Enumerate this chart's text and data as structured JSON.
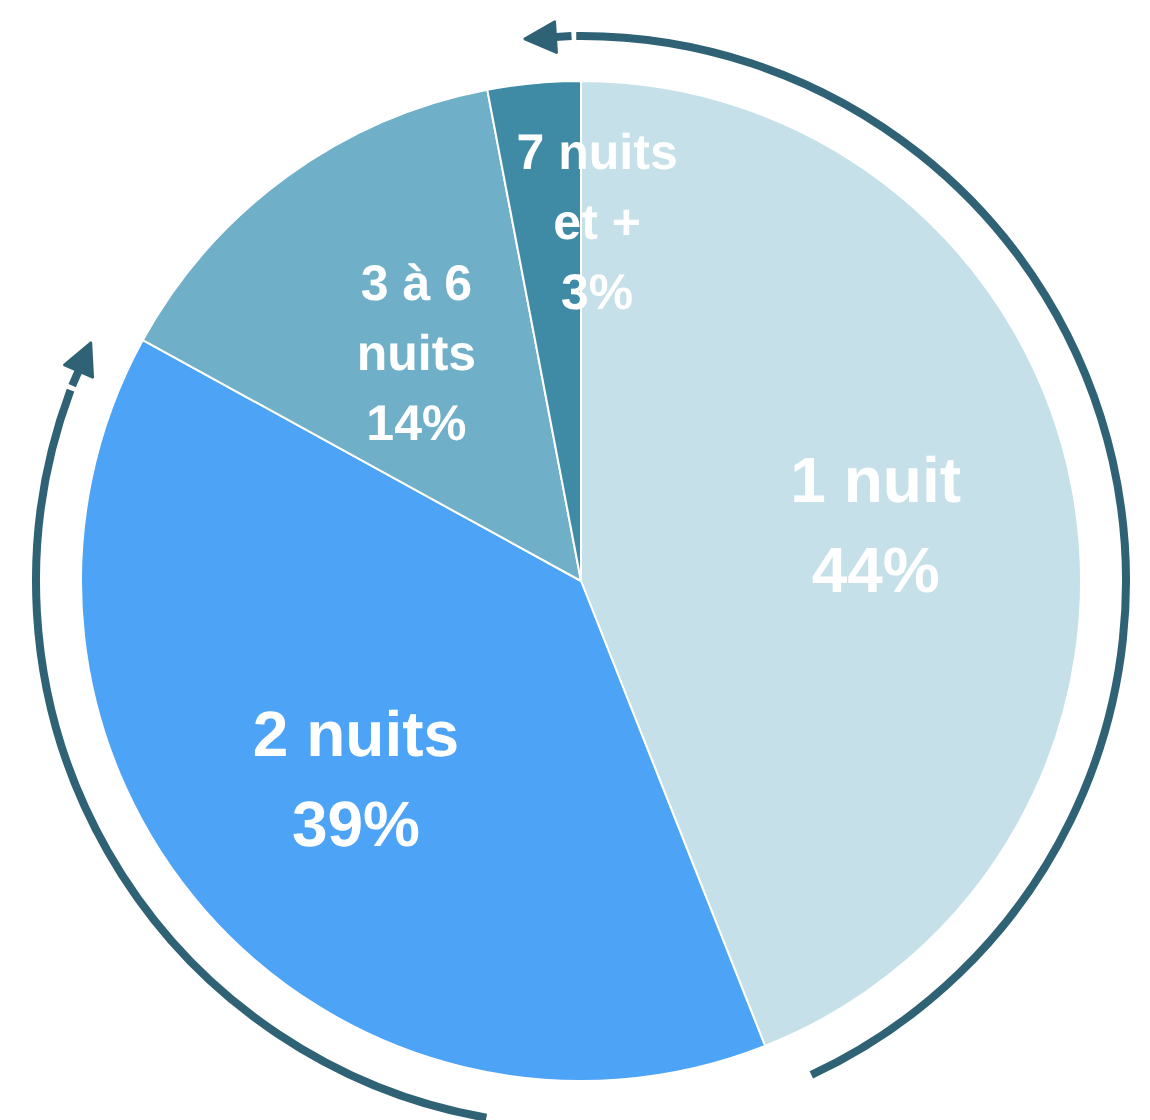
{
  "chart_data": {
    "type": "pie",
    "categories": [
      "1 nuit",
      "2 nuits",
      "3 à 6 nuits",
      "7 nuits et +"
    ],
    "values": [
      44,
      39,
      14,
      3
    ],
    "colors": [
      "#c5e0e8",
      "#4da3f5",
      "#6fb0c8",
      "#3f8aa5"
    ],
    "value_labels": [
      "44%",
      "39%",
      "14%",
      "3%"
    ]
  }
}
